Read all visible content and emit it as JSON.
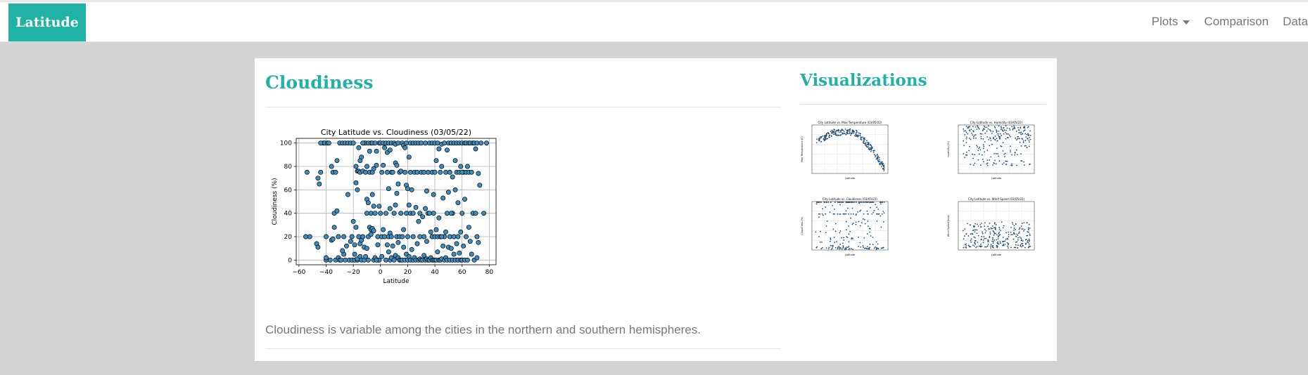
{
  "nav": {
    "brand": "Latitude",
    "links": [
      "Plots",
      "Comparison",
      "Data"
    ]
  },
  "main": {
    "title": "Cloudiness",
    "description": "Cloudiness is variable among the cities in the northern and southern hemispheres."
  },
  "sidebar": {
    "title": "Visualizations",
    "thumbnails": [
      {
        "title": "City Latitude vs. Max Temperature (03/05/22)",
        "ylabel": "Max Temperature (C)",
        "xlabel": "Latitude"
      },
      {
        "title": "City Latitude vs. Humidity (03/05/22)",
        "ylabel": "Humidity (%)",
        "xlabel": "Latitude"
      },
      {
        "title": "City Latitude vs. Cloudiness (03/05/22)",
        "ylabel": "Cloudiness (%)",
        "xlabel": "Latitude"
      },
      {
        "title": "City Latitude vs. Wind Speed (03/05/22)",
        "ylabel": "Wind Speed (m/s)",
        "xlabel": "Latitude"
      }
    ]
  },
  "colors": {
    "accent": "#21b2a6",
    "marker": "#3b8ec2",
    "thumb_marker": "#1f4e79",
    "background": "#d3d3d3"
  },
  "chart_data": {
    "type": "scatter",
    "title": "City Latitude vs. Cloudiness (03/05/22)",
    "xlabel": "Latitude",
    "ylabel": "Cloudiness (%)",
    "xlim": [
      -62,
      85
    ],
    "ylim": [
      -4,
      104
    ],
    "xticks": [
      -60,
      -40,
      -20,
      0,
      20,
      40,
      60,
      80
    ],
    "yticks": [
      0,
      20,
      40,
      60,
      80,
      100
    ],
    "grid": true,
    "points": [
      [
        -54,
        75
      ],
      [
        -55,
        20
      ],
      [
        -52,
        20
      ],
      [
        -47,
        14
      ],
      [
        -46,
        11
      ],
      [
        -46,
        70
      ],
      [
        -45,
        65
      ],
      [
        -44,
        75
      ],
      [
        -42,
        100
      ],
      [
        -41,
        100
      ],
      [
        -40,
        0
      ],
      [
        -40,
        2
      ],
      [
        -40,
        20
      ],
      [
        -39,
        100
      ],
      [
        -38,
        100
      ],
      [
        -37,
        0
      ],
      [
        -36,
        17
      ],
      [
        -35,
        18
      ],
      [
        -35,
        75
      ],
      [
        -34,
        28
      ],
      [
        -34,
        40
      ],
      [
        -33,
        0
      ],
      [
        -33,
        75
      ],
      [
        -32,
        42
      ],
      [
        -32,
        85
      ],
      [
        -31,
        2
      ],
      [
        -31,
        20
      ],
      [
        -30,
        0
      ],
      [
        -30,
        100
      ],
      [
        -29,
        0
      ],
      [
        -28,
        100
      ],
      [
        -27,
        5
      ],
      [
        -27,
        20
      ],
      [
        -26,
        0
      ],
      [
        -26,
        100
      ],
      [
        -25,
        12
      ],
      [
        -24,
        56
      ],
      [
        -24,
        100
      ],
      [
        -23,
        0
      ],
      [
        -22,
        100
      ],
      [
        -21,
        0
      ],
      [
        -21,
        20
      ],
      [
        -20,
        33
      ],
      [
        -20,
        100
      ],
      [
        -19,
        0
      ],
      [
        -19,
        5
      ],
      [
        -19,
        13
      ],
      [
        -18,
        28
      ],
      [
        -18,
        66
      ],
      [
        -18,
        80
      ],
      [
        -17,
        0
      ],
      [
        -17,
        1
      ],
      [
        -17,
        60
      ],
      [
        -17,
        76
      ],
      [
        -16,
        20
      ],
      [
        -16,
        76
      ],
      [
        -16,
        96
      ],
      [
        -15,
        3
      ],
      [
        -15,
        14
      ],
      [
        -15,
        75
      ],
      [
        -15,
        85
      ],
      [
        -14,
        0
      ],
      [
        -14,
        17
      ],
      [
        -14,
        88
      ],
      [
        -13,
        20
      ],
      [
        -13,
        76
      ],
      [
        -12,
        0
      ],
      [
        -12,
        11
      ],
      [
        -12,
        100
      ],
      [
        -11,
        3
      ],
      [
        -11,
        75
      ],
      [
        -11,
        100
      ],
      [
        -10,
        10
      ],
      [
        -10,
        40
      ],
      [
        -10,
        52
      ],
      [
        -10,
        80
      ],
      [
        -9,
        0
      ],
      [
        -9,
        20
      ],
      [
        -9,
        49
      ],
      [
        -9,
        100
      ],
      [
        -8,
        28
      ],
      [
        -8,
        75
      ],
      [
        -8,
        93
      ],
      [
        -7,
        22
      ],
      [
        -7,
        26
      ],
      [
        -7,
        40
      ],
      [
        -7,
        100
      ],
      [
        -6,
        27
      ],
      [
        -6,
        56
      ],
      [
        -6,
        75
      ],
      [
        -6,
        100
      ],
      [
        -5,
        0
      ],
      [
        -5,
        25
      ],
      [
        -5,
        46
      ],
      [
        -5,
        78
      ],
      [
        -4,
        2
      ],
      [
        -4,
        40
      ],
      [
        -4,
        100
      ],
      [
        -3,
        81
      ],
      [
        -3,
        93
      ],
      [
        -2,
        0
      ],
      [
        -2,
        13
      ],
      [
        -2,
        20
      ],
      [
        -1,
        0
      ],
      [
        -1,
        46
      ],
      [
        -1,
        100
      ],
      [
        0,
        40
      ],
      [
        0,
        100
      ],
      [
        1,
        3
      ],
      [
        1,
        20
      ],
      [
        1,
        75
      ],
      [
        2,
        26
      ],
      [
        2,
        81
      ],
      [
        2,
        100
      ],
      [
        3,
        20
      ],
      [
        3,
        96
      ],
      [
        4,
        0
      ],
      [
        4,
        40
      ],
      [
        4,
        100
      ],
      [
        5,
        13
      ],
      [
        5,
        75
      ],
      [
        5,
        92
      ],
      [
        6,
        7
      ],
      [
        6,
        20
      ],
      [
        6,
        61
      ],
      [
        6,
        100
      ],
      [
        7,
        0
      ],
      [
        7,
        23
      ],
      [
        7,
        44
      ],
      [
        7,
        94
      ],
      [
        8,
        2
      ],
      [
        8,
        20
      ],
      [
        8,
        75
      ],
      [
        8,
        100
      ],
      [
        9,
        12
      ],
      [
        9,
        75
      ],
      [
        10,
        0
      ],
      [
        10,
        40
      ],
      [
        10,
        100
      ],
      [
        11,
        4
      ],
      [
        11,
        47
      ],
      [
        11,
        83
      ],
      [
        11,
        99
      ],
      [
        12,
        20
      ],
      [
        12,
        57
      ],
      [
        12,
        81
      ],
      [
        13,
        2
      ],
      [
        13,
        15
      ],
      [
        13,
        65
      ],
      [
        13,
        100
      ],
      [
        14,
        0
      ],
      [
        14,
        20
      ],
      [
        14,
        75
      ],
      [
        15,
        0
      ],
      [
        15,
        40
      ],
      [
        15,
        76
      ],
      [
        16,
        0
      ],
      [
        16,
        20
      ],
      [
        16,
        100
      ],
      [
        17,
        11
      ],
      [
        17,
        26
      ],
      [
        17,
        98
      ],
      [
        18,
        0
      ],
      [
        18,
        75
      ],
      [
        18,
        96
      ],
      [
        19,
        5
      ],
      [
        19,
        40
      ],
      [
        19,
        64
      ],
      [
        19,
        100
      ],
      [
        20,
        0
      ],
      [
        20,
        20
      ],
      [
        20,
        61
      ],
      [
        21,
        3
      ],
      [
        21,
        47
      ],
      [
        21,
        88
      ],
      [
        22,
        0
      ],
      [
        22,
        40
      ],
      [
        22,
        75
      ],
      [
        22,
        100
      ],
      [
        23,
        9
      ],
      [
        23,
        60
      ],
      [
        24,
        0
      ],
      [
        24,
        20
      ],
      [
        24,
        100
      ],
      [
        25,
        2
      ],
      [
        25,
        75
      ],
      [
        26,
        0
      ],
      [
        26,
        45
      ],
      [
        26,
        100
      ],
      [
        27,
        14
      ],
      [
        27,
        75
      ],
      [
        28,
        0
      ],
      [
        28,
        33
      ],
      [
        28,
        100
      ],
      [
        29,
        1
      ],
      [
        29,
        20
      ],
      [
        29,
        40
      ],
      [
        30,
        0
      ],
      [
        30,
        75
      ],
      [
        30,
        100
      ],
      [
        31,
        0
      ],
      [
        31,
        37
      ],
      [
        32,
        4
      ],
      [
        32,
        20
      ],
      [
        32,
        75
      ],
      [
        33,
        0
      ],
      [
        33,
        44
      ],
      [
        33,
        100
      ],
      [
        34,
        1
      ],
      [
        34,
        16
      ],
      [
        34,
        59
      ],
      [
        35,
        0
      ],
      [
        35,
        40
      ],
      [
        35,
        75
      ],
      [
        36,
        0
      ],
      [
        36,
        100
      ],
      [
        37,
        2
      ],
      [
        37,
        24
      ],
      [
        38,
        0
      ],
      [
        38,
        20
      ],
      [
        38,
        75
      ],
      [
        38,
        100
      ],
      [
        39,
        0
      ],
      [
        39,
        40
      ],
      [
        39,
        56
      ],
      [
        40,
        0
      ],
      [
        40,
        20
      ],
      [
        40,
        75
      ],
      [
        40,
        100
      ],
      [
        41,
        0
      ],
      [
        41,
        26
      ],
      [
        41,
        85
      ],
      [
        42,
        7
      ],
      [
        42,
        20
      ],
      [
        42,
        100
      ],
      [
        43,
        0
      ],
      [
        43,
        36
      ],
      [
        43,
        95
      ],
      [
        44,
        0
      ],
      [
        44,
        20
      ],
      [
        44,
        75
      ],
      [
        45,
        1
      ],
      [
        45,
        80
      ],
      [
        45,
        99
      ],
      [
        46,
        12
      ],
      [
        46,
        53
      ],
      [
        47,
        0
      ],
      [
        47,
        20
      ],
      [
        47,
        100
      ],
      [
        48,
        2
      ],
      [
        48,
        24
      ],
      [
        48,
        75
      ],
      [
        49,
        0
      ],
      [
        49,
        40
      ],
      [
        49,
        94
      ],
      [
        50,
        11
      ],
      [
        50,
        58
      ],
      [
        50,
        100
      ],
      [
        51,
        0
      ],
      [
        51,
        20
      ],
      [
        51,
        75
      ],
      [
        52,
        10
      ],
      [
        52,
        100
      ],
      [
        53,
        0
      ],
      [
        53,
        40
      ],
      [
        53,
        71
      ],
      [
        54,
        5
      ],
      [
        54,
        20
      ],
      [
        54,
        100
      ],
      [
        55,
        0
      ],
      [
        55,
        60
      ],
      [
        55,
        85
      ],
      [
        56,
        14
      ],
      [
        56,
        75
      ],
      [
        56,
        100
      ],
      [
        57,
        0
      ],
      [
        57,
        20
      ],
      [
        57,
        49
      ],
      [
        58,
        6
      ],
      [
        58,
        75
      ],
      [
        58,
        100
      ],
      [
        59,
        0
      ],
      [
        59,
        24
      ],
      [
        59,
        80
      ],
      [
        60,
        0
      ],
      [
        60,
        40
      ],
      [
        60,
        100
      ],
      [
        61,
        12
      ],
      [
        61,
        75
      ],
      [
        62,
        0
      ],
      [
        62,
        52
      ],
      [
        62,
        100
      ],
      [
        63,
        20
      ],
      [
        63,
        75
      ],
      [
        63,
        100
      ],
      [
        64,
        0
      ],
      [
        64,
        80
      ],
      [
        65,
        28
      ],
      [
        65,
        75
      ],
      [
        65,
        100
      ],
      [
        66,
        16
      ],
      [
        66,
        100
      ],
      [
        67,
        5
      ],
      [
        67,
        75
      ],
      [
        68,
        40
      ],
      [
        68,
        100
      ],
      [
        69,
        0
      ],
      [
        69,
        100
      ],
      [
        70,
        40
      ],
      [
        70,
        95
      ],
      [
        71,
        2
      ],
      [
        71,
        20
      ],
      [
        71,
        100
      ],
      [
        72,
        15
      ],
      [
        72,
        74
      ],
      [
        73,
        64
      ],
      [
        74,
        100
      ],
      [
        76,
        40
      ],
      [
        78,
        100
      ],
      [
        -44,
        100
      ],
      [
        -36,
        80
      ],
      [
        -28,
        8
      ],
      [
        -22,
        16
      ],
      [
        -13,
        100
      ],
      [
        -3,
        0
      ],
      [
        24,
        40
      ],
      [
        36,
        40
      ],
      [
        45,
        20
      ],
      [
        52,
        40
      ],
      [
        60,
        75
      ]
    ]
  }
}
